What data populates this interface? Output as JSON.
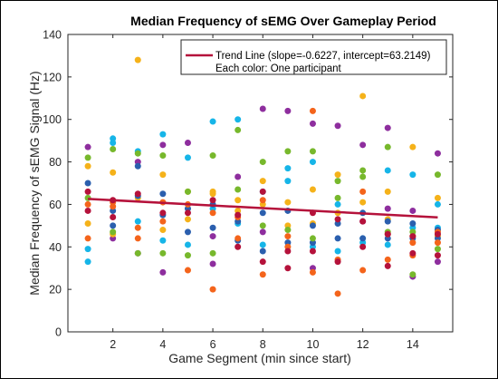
{
  "chart_data": {
    "type": "scatter",
    "title": "Median Frequency of sEMG Over Gameplay Period",
    "xlabel": "Game Segment (min since start)",
    "ylabel": "Median Frequency of sEMG Signal (Hz)",
    "xlim": [
      0.2,
      15.6
    ],
    "ylim": [
      0,
      140
    ],
    "xticks": [
      2,
      4,
      6,
      8,
      10,
      12,
      14
    ],
    "yticks": [
      0,
      20,
      40,
      60,
      80,
      100,
      120,
      140
    ],
    "grid": false,
    "legend_position": "top-right",
    "legend": {
      "line_entry": "Trend Line (slope=-0.6227, intercept=63.2149)",
      "text_entry": "Each color: One participant"
    },
    "trend_line": {
      "slope": -0.6227,
      "intercept": 63.2149,
      "x_range": [
        1,
        15
      ],
      "color": "#b5123b"
    },
    "colors": [
      "#8e2e9e",
      "#f5b21a",
      "#16b5e8",
      "#2b5fae",
      "#77b82c",
      "#f4641b",
      "#b5123b"
    ],
    "series": [
      {
        "color": "#8e2e9e",
        "points": [
          [
            1,
            87
          ],
          [
            2,
            44
          ],
          [
            3,
            80
          ],
          [
            4,
            88
          ],
          [
            5,
            89
          ],
          [
            6,
            45
          ],
          [
            7,
            73
          ],
          [
            8,
            105
          ],
          [
            9,
            104
          ],
          [
            10,
            30
          ],
          [
            11,
            97
          ],
          [
            12,
            88
          ],
          [
            13,
            96
          ],
          [
            14,
            26
          ],
          [
            15,
            84
          ],
          [
            3,
            37
          ],
          [
            4,
            28
          ],
          [
            6,
            32
          ],
          [
            8,
            47
          ],
          [
            10,
            98
          ],
          [
            12,
            52
          ],
          [
            13,
            58
          ],
          [
            14,
            57
          ],
          [
            15,
            33
          ]
        ]
      },
      {
        "color": "#f5b21a",
        "points": [
          [
            1,
            78
          ],
          [
            2,
            75
          ],
          [
            3,
            128
          ],
          [
            4,
            74
          ],
          [
            5,
            53
          ],
          [
            6,
            66
          ],
          [
            7,
            57
          ],
          [
            8,
            71
          ],
          [
            9,
            61
          ],
          [
            10,
            67
          ],
          [
            11,
            74
          ],
          [
            12,
            111
          ],
          [
            13,
            66
          ],
          [
            14,
            87
          ],
          [
            15,
            63
          ],
          [
            1,
            51
          ],
          [
            2,
            46
          ],
          [
            3,
            63
          ],
          [
            4,
            48
          ],
          [
            5,
            66
          ],
          [
            6,
            65
          ],
          [
            7,
            62
          ],
          [
            8,
            60
          ],
          [
            9,
            50
          ],
          [
            10,
            51
          ],
          [
            11,
            56
          ],
          [
            12,
            61
          ],
          [
            13,
            53
          ],
          [
            14,
            45
          ],
          [
            15,
            45
          ]
        ]
      },
      {
        "color": "#16b5e8",
        "points": [
          [
            1,
            39
          ],
          [
            1,
            33
          ],
          [
            2,
            91
          ],
          [
            2,
            89
          ],
          [
            3,
            85
          ],
          [
            3,
            52
          ],
          [
            4,
            93
          ],
          [
            4,
            43
          ],
          [
            5,
            82
          ],
          [
            5,
            41
          ],
          [
            6,
            99
          ],
          [
            6,
            58
          ],
          [
            7,
            100
          ],
          [
            7,
            51
          ],
          [
            8,
            66
          ],
          [
            8,
            41
          ],
          [
            9,
            77
          ],
          [
            9,
            71
          ],
          [
            10,
            80
          ],
          [
            10,
            40
          ],
          [
            11,
            60
          ],
          [
            11,
            38
          ],
          [
            12,
            44
          ],
          [
            12,
            42
          ],
          [
            13,
            76
          ],
          [
            13,
            41
          ],
          [
            14,
            74
          ],
          [
            14,
            49
          ],
          [
            15,
            60
          ],
          [
            15,
            49
          ]
        ]
      },
      {
        "color": "#2b5fae",
        "points": [
          [
            1,
            70
          ],
          [
            2,
            57
          ],
          [
            2,
            50
          ],
          [
            3,
            78
          ],
          [
            3,
            64
          ],
          [
            4,
            65
          ],
          [
            4,
            55
          ],
          [
            5,
            58
          ],
          [
            5,
            47
          ],
          [
            6,
            60
          ],
          [
            6,
            49
          ],
          [
            7,
            43
          ],
          [
            7,
            52
          ],
          [
            8,
            56
          ],
          [
            8,
            38
          ],
          [
            9,
            42
          ],
          [
            9,
            57
          ],
          [
            10,
            42
          ],
          [
            10,
            50
          ],
          [
            11,
            51
          ],
          [
            11,
            44
          ],
          [
            12,
            56
          ],
          [
            12,
            44
          ],
          [
            13,
            52
          ],
          [
            13,
            44
          ],
          [
            14,
            51
          ],
          [
            14,
            44
          ],
          [
            15,
            48
          ],
          [
            15,
            44
          ]
        ]
      },
      {
        "color": "#77b82c",
        "points": [
          [
            1,
            82
          ],
          [
            1,
            63
          ],
          [
            2,
            86
          ],
          [
            2,
            47
          ],
          [
            3,
            37
          ],
          [
            3,
            84
          ],
          [
            4,
            83
          ],
          [
            4,
            37
          ],
          [
            5,
            66
          ],
          [
            5,
            36
          ],
          [
            6,
            83
          ],
          [
            6,
            37
          ],
          [
            7,
            95
          ],
          [
            7,
            67
          ],
          [
            8,
            80
          ],
          [
            8,
            50
          ],
          [
            9,
            85
          ],
          [
            9,
            48
          ],
          [
            10,
            85
          ],
          [
            10,
            44
          ],
          [
            11,
            71
          ],
          [
            11,
            63
          ],
          [
            12,
            76
          ],
          [
            12,
            73
          ],
          [
            13,
            87
          ],
          [
            13,
            47
          ],
          [
            14,
            27
          ],
          [
            14,
            47
          ],
          [
            15,
            74
          ],
          [
            15,
            39
          ]
        ]
      },
      {
        "color": "#f4641b",
        "points": [
          [
            1,
            60
          ],
          [
            1,
            44
          ],
          [
            2,
            61
          ],
          [
            2,
            59
          ],
          [
            3,
            44
          ],
          [
            3,
            49
          ],
          [
            4,
            61
          ],
          [
            4,
            52
          ],
          [
            5,
            29
          ],
          [
            5,
            60
          ],
          [
            6,
            20
          ],
          [
            6,
            56
          ],
          [
            7,
            54
          ],
          [
            7,
            44
          ],
          [
            8,
            27
          ],
          [
            8,
            62
          ],
          [
            9,
            45
          ],
          [
            9,
            40
          ],
          [
            10,
            104
          ],
          [
            10,
            28
          ],
          [
            11,
            18
          ],
          [
            11,
            34
          ],
          [
            12,
            29
          ],
          [
            12,
            66
          ],
          [
            13,
            34
          ],
          [
            13,
            46
          ],
          [
            14,
            36
          ],
          [
            14,
            42
          ],
          [
            15,
            42
          ],
          [
            15,
            47
          ]
        ]
      },
      {
        "color": "#b5123b",
        "points": [
          [
            1,
            57
          ],
          [
            1,
            66
          ],
          [
            2,
            62
          ],
          [
            2,
            54
          ],
          [
            3,
            65
          ],
          [
            4,
            56
          ],
          [
            5,
            56
          ],
          [
            6,
            62
          ],
          [
            7,
            40
          ],
          [
            7,
            55
          ],
          [
            8,
            33
          ],
          [
            8,
            66
          ],
          [
            9,
            30
          ],
          [
            9,
            38
          ],
          [
            10,
            56
          ],
          [
            10,
            38
          ],
          [
            11,
            33
          ],
          [
            11,
            53
          ],
          [
            12,
            52
          ],
          [
            12,
            40
          ],
          [
            13,
            31
          ],
          [
            13,
            46
          ],
          [
            14,
            37
          ],
          [
            14,
            45
          ],
          [
            15,
            36
          ],
          [
            15,
            46
          ]
        ]
      }
    ]
  }
}
